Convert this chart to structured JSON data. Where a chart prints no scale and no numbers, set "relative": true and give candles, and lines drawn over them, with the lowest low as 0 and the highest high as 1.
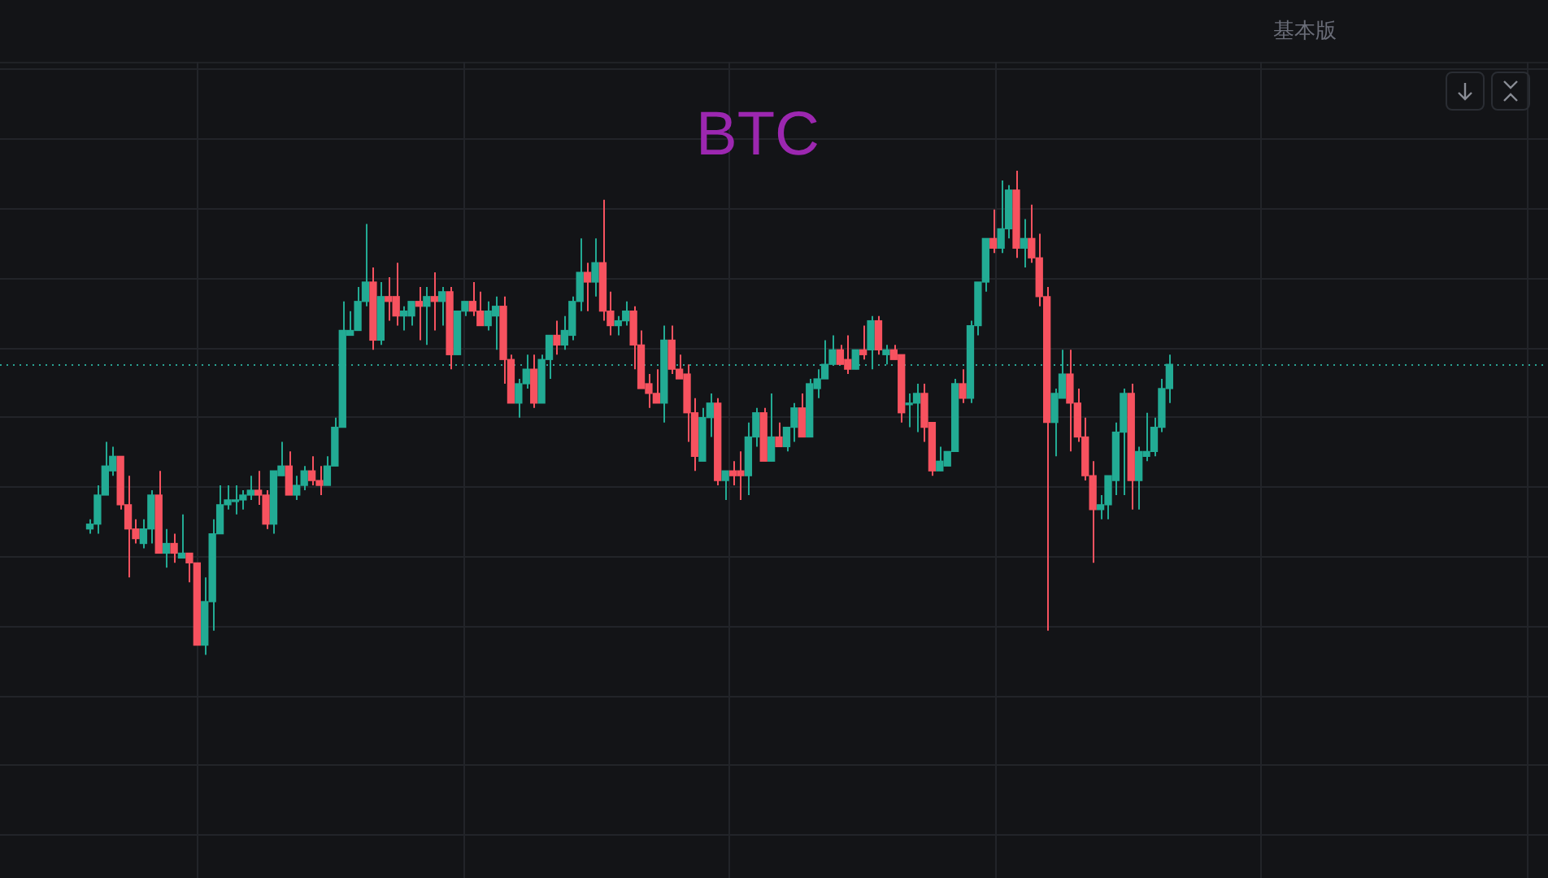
{
  "chart_data": {
    "type": "candlestick",
    "title": "BTC",
    "annotations": [
      "基本版"
    ],
    "relative": true,
    "grid": true,
    "categories": [
      null,
      null,
      null,
      null,
      null,
      null,
      null,
      null,
      null,
      null,
      null,
      null,
      null,
      null,
      null,
      null,
      null,
      null,
      null,
      null,
      null,
      null,
      null,
      null,
      null,
      null,
      null,
      null,
      null,
      null,
      null,
      null,
      null,
      null,
      null,
      null,
      null,
      null,
      null,
      null,
      null,
      null,
      null,
      null,
      null,
      null,
      null,
      null,
      null,
      null,
      null,
      null,
      null,
      null,
      null,
      null,
      null,
      null,
      null,
      null,
      null,
      null,
      null,
      null,
      null,
      null,
      null,
      null,
      null,
      null,
      null,
      null,
      null,
      null,
      null,
      null,
      null,
      null,
      null,
      null,
      null,
      null,
      null,
      null,
      null,
      null,
      null,
      null,
      null,
      null,
      null,
      null,
      null,
      null,
      null,
      null,
      null,
      null,
      null,
      null,
      null,
      null,
      null,
      null,
      null,
      null,
      null,
      null,
      null,
      null,
      null,
      null,
      null,
      null,
      null,
      null,
      null,
      null,
      null,
      null,
      null,
      null,
      null,
      null,
      null,
      null,
      null,
      null,
      null,
      null,
      null,
      null,
      null,
      null,
      null,
      null,
      null,
      null,
      null,
      null,
      null,
      null
    ],
    "ohlc": [
      [
        0.26,
        0.28,
        0.25,
        0.27
      ],
      [
        0.27,
        0.35,
        0.25,
        0.33
      ],
      [
        0.33,
        0.44,
        0.33,
        0.39
      ],
      [
        0.38,
        0.43,
        0.37,
        0.41
      ],
      [
        0.41,
        0.41,
        0.3,
        0.31
      ],
      [
        0.31,
        0.37,
        0.16,
        0.26
      ],
      [
        0.26,
        0.28,
        0.23,
        0.24
      ],
      [
        0.23,
        0.28,
        0.22,
        0.26
      ],
      [
        0.26,
        0.34,
        0.23,
        0.33
      ],
      [
        0.33,
        0.38,
        0.21,
        0.21
      ],
      [
        0.21,
        0.26,
        0.18,
        0.23
      ],
      [
        0.23,
        0.25,
        0.19,
        0.21
      ],
      [
        0.2,
        0.29,
        0.2,
        0.21
      ],
      [
        0.21,
        0.21,
        0.15,
        0.19
      ],
      [
        0.19,
        0.19,
        0.02,
        0.02
      ],
      [
        0.02,
        0.16,
        0,
        0.11
      ],
      [
        0.11,
        0.28,
        0.05,
        0.25
      ],
      [
        0.25,
        0.35,
        0.25,
        0.31
      ],
      [
        0.31,
        0.35,
        0.3,
        0.32
      ],
      [
        0.32,
        0.35,
        0.29,
        0.32
      ],
      [
        0.32,
        0.34,
        0.3,
        0.33
      ],
      [
        0.33,
        0.37,
        0.32,
        0.34
      ],
      [
        0.34,
        0.38,
        0.31,
        0.33
      ],
      [
        0.33,
        0.34,
        0.26,
        0.27
      ],
      [
        0.27,
        0.38,
        0.25,
        0.38
      ],
      [
        0.37,
        0.44,
        0.37,
        0.39
      ],
      [
        0.39,
        0.42,
        0.33,
        0.33
      ],
      [
        0.33,
        0.37,
        0.32,
        0.35
      ],
      [
        0.35,
        0.39,
        0.34,
        0.38
      ],
      [
        0.38,
        0.41,
        0.35,
        0.36
      ],
      [
        0.36,
        0.39,
        0.33,
        0.35
      ],
      [
        0.35,
        0.41,
        0.35,
        0.39
      ],
      [
        0.39,
        0.49,
        0.39,
        0.47
      ],
      [
        0.47,
        0.73,
        0.47,
        0.67
      ],
      [
        0.66,
        0.71,
        0.66,
        0.67
      ],
      [
        0.67,
        0.76,
        0.67,
        0.73
      ],
      [
        0.73,
        0.89,
        0.72,
        0.77
      ],
      [
        0.77,
        0.8,
        0.63,
        0.65
      ],
      [
        0.65,
        0.77,
        0.64,
        0.74
      ],
      [
        0.74,
        0.78,
        0.69,
        0.73
      ],
      [
        0.74,
        0.81,
        0.68,
        0.7
      ],
      [
        0.7,
        0.72,
        0.67,
        0.71
      ],
      [
        0.7,
        0.73,
        0.68,
        0.73
      ],
      [
        0.73,
        0.76,
        0.65,
        0.72
      ],
      [
        0.72,
        0.76,
        0.64,
        0.74
      ],
      [
        0.74,
        0.79,
        0.67,
        0.73
      ],
      [
        0.73,
        0.76,
        0.68,
        0.75
      ],
      [
        0.75,
        0.76,
        0.59,
        0.62
      ],
      [
        0.62,
        0.71,
        0.62,
        0.71
      ],
      [
        0.71,
        0.73,
        0.7,
        0.73
      ],
      [
        0.73,
        0.77,
        0.7,
        0.71
      ],
      [
        0.71,
        0.75,
        0.68,
        0.68
      ],
      [
        0.68,
        0.73,
        0.67,
        0.71
      ],
      [
        0.7,
        0.74,
        0.63,
        0.72
      ],
      [
        0.72,
        0.74,
        0.56,
        0.61
      ],
      [
        0.61,
        0.62,
        0.52,
        0.52
      ],
      [
        0.52,
        0.57,
        0.49,
        0.56
      ],
      [
        0.56,
        0.62,
        0.55,
        0.59
      ],
      [
        0.59,
        0.62,
        0.51,
        0.52
      ],
      [
        0.52,
        0.62,
        0.52,
        0.61
      ],
      [
        0.61,
        0.66,
        0.57,
        0.66
      ],
      [
        0.66,
        0.69,
        0.62,
        0.64
      ],
      [
        0.64,
        0.7,
        0.63,
        0.67
      ],
      [
        0.66,
        0.74,
        0.65,
        0.73
      ],
      [
        0.73,
        0.86,
        0.71,
        0.79
      ],
      [
        0.79,
        0.81,
        0.71,
        0.77
      ],
      [
        0.77,
        0.86,
        0.74,
        0.81
      ],
      [
        0.81,
        0.94,
        0.69,
        0.71
      ],
      [
        0.71,
        0.75,
        0.66,
        0.68
      ],
      [
        0.68,
        0.7,
        0.66,
        0.69
      ],
      [
        0.69,
        0.73,
        0.68,
        0.71
      ],
      [
        0.71,
        0.72,
        0.59,
        0.64
      ],
      [
        0.64,
        0.67,
        0.55,
        0.55
      ],
      [
        0.56,
        0.58,
        0.51,
        0.54
      ],
      [
        0.54,
        0.59,
        0.52,
        0.52
      ],
      [
        0.52,
        0.68,
        0.48,
        0.65
      ],
      [
        0.65,
        0.68,
        0.58,
        0.59
      ],
      [
        0.59,
        0.62,
        0.57,
        0.57
      ],
      [
        0.58,
        0.6,
        0.44,
        0.5
      ],
      [
        0.5,
        0.53,
        0.38,
        0.41
      ],
      [
        0.4,
        0.51,
        0.4,
        0.49
      ],
      [
        0.49,
        0.54,
        0.45,
        0.52
      ],
      [
        0.52,
        0.53,
        0.35,
        0.36
      ],
      [
        0.36,
        0.38,
        0.32,
        0.38
      ],
      [
        0.38,
        0.4,
        0.35,
        0.37
      ],
      [
        0.38,
        0.42,
        0.32,
        0.37
      ],
      [
        0.37,
        0.48,
        0.33,
        0.45
      ],
      [
        0.45,
        0.51,
        0.43,
        0.5
      ],
      [
        0.5,
        0.51,
        0.4,
        0.4
      ],
      [
        0.4,
        0.54,
        0.4,
        0.45
      ],
      [
        0.45,
        0.48,
        0.43,
        0.43
      ],
      [
        0.43,
        0.47,
        0.42,
        0.47
      ],
      [
        0.47,
        0.52,
        0.44,
        0.51
      ],
      [
        0.51,
        0.54,
        0.45,
        0.45
      ],
      [
        0.45,
        0.57,
        0.45,
        0.56
      ],
      [
        0.55,
        0.59,
        0.53,
        0.57
      ],
      [
        0.57,
        0.65,
        0.57,
        0.6
      ],
      [
        0.6,
        0.66,
        0.6,
        0.63
      ],
      [
        0.63,
        0.64,
        0.6,
        0.6
      ],
      [
        0.61,
        0.66,
        0.58,
        0.59
      ],
      [
        0.59,
        0.63,
        0.59,
        0.63
      ],
      [
        0.63,
        0.68,
        0.61,
        0.62
      ],
      [
        0.63,
        0.7,
        0.59,
        0.69
      ],
      [
        0.69,
        0.7,
        0.62,
        0.63
      ],
      [
        0.62,
        0.64,
        0.6,
        0.63
      ],
      [
        0.63,
        0.64,
        0.61,
        0.61
      ],
      [
        0.62,
        0.62,
        0.48,
        0.5
      ],
      [
        0.52,
        0.54,
        0.47,
        0.52
      ],
      [
        0.52,
        0.56,
        0.46,
        0.54
      ],
      [
        0.54,
        0.56,
        0.44,
        0.47
      ],
      [
        0.48,
        0.48,
        0.37,
        0.38
      ],
      [
        0.38,
        0.43,
        0.38,
        0.4
      ],
      [
        0.39,
        0.42,
        0.39,
        0.42
      ],
      [
        0.42,
        0.57,
        0.42,
        0.56
      ],
      [
        0.56,
        0.59,
        0.52,
        0.53
      ],
      [
        0.53,
        0.69,
        0.52,
        0.68
      ],
      [
        0.68,
        0.77,
        0.66,
        0.77
      ],
      [
        0.77,
        0.86,
        0.75,
        0.86
      ],
      [
        0.86,
        0.92,
        0.83,
        0.84
      ],
      [
        0.84,
        0.98,
        0.83,
        0.88
      ],
      [
        0.88,
        0.97,
        0.86,
        0.96
      ],
      [
        0.96,
        1,
        0.82,
        0.84
      ],
      [
        0.84,
        0.9,
        0.8,
        0.86
      ],
      [
        0.86,
        0.93,
        0.81,
        0.82
      ],
      [
        0.82,
        0.87,
        0.72,
        0.74
      ],
      [
        0.74,
        0.76,
        0.05,
        0.48
      ],
      [
        0.48,
        0.55,
        0.41,
        0.54
      ],
      [
        0.53,
        0.63,
        0.53,
        0.58
      ],
      [
        0.58,
        0.63,
        0.42,
        0.52
      ],
      [
        0.52,
        0.55,
        0.44,
        0.45
      ],
      [
        0.45,
        0.49,
        0.36,
        0.37
      ],
      [
        0.37,
        0.4,
        0.19,
        0.3
      ],
      [
        0.3,
        0.33,
        0.28,
        0.31
      ],
      [
        0.31,
        0.37,
        0.28,
        0.37
      ],
      [
        0.36,
        0.48,
        0.33,
        0.46
      ],
      [
        0.46,
        0.55,
        0.33,
        0.54
      ],
      [
        0.54,
        0.56,
        0.3,
        0.36
      ],
      [
        0.36,
        0.43,
        0.3,
        0.42
      ],
      [
        0.41,
        0.5,
        0.4,
        0.42
      ],
      [
        0.42,
        0.49,
        0.41,
        0.47
      ],
      [
        0.47,
        0.57,
        0.46,
        0.55
      ],
      [
        0.55,
        0.62,
        0.52,
        0.6
      ]
    ],
    "colors": [
      "#22ab94",
      "#22ab94",
      "#22ab94",
      "#22ab94",
      "#f7525f",
      "#f7525f",
      "#f7525f",
      "#22ab94",
      "#22ab94",
      "#f7525f",
      "#22ab94",
      "#f7525f",
      "#22ab94",
      "#f7525f",
      "#f7525f",
      "#22ab94",
      "#22ab94",
      "#22ab94",
      "#22ab94",
      "#22ab94",
      "#22ab94",
      "#22ab94",
      "#f7525f",
      "#f7525f",
      "#22ab94",
      "#22ab94",
      "#f7525f",
      "#22ab94",
      "#22ab94",
      "#f7525f",
      "#f7525f",
      "#22ab94",
      "#22ab94",
      "#22ab94",
      "#22ab94",
      "#22ab94",
      "#22ab94",
      "#f7525f",
      "#22ab94",
      "#f7525f",
      "#f7525f",
      "#22ab94",
      "#22ab94",
      "#f7525f",
      "#22ab94",
      "#f7525f",
      "#22ab94",
      "#f7525f",
      "#22ab94",
      "#22ab94",
      "#f7525f",
      "#f7525f",
      "#22ab94",
      "#22ab94",
      "#f7525f",
      "#f7525f",
      "#22ab94",
      "#22ab94",
      "#f7525f",
      "#22ab94",
      "#22ab94",
      "#f7525f",
      "#22ab94",
      "#22ab94",
      "#22ab94",
      "#f7525f",
      "#22ab94",
      "#f7525f",
      "#f7525f",
      "#22ab94",
      "#22ab94",
      "#f7525f",
      "#f7525f",
      "#f7525f",
      "#f7525f",
      "#22ab94",
      "#f7525f",
      "#f7525f",
      "#f7525f",
      "#f7525f",
      "#22ab94",
      "#22ab94",
      "#f7525f",
      "#22ab94",
      "#f7525f",
      "#f7525f",
      "#22ab94",
      "#22ab94",
      "#f7525f",
      "#22ab94",
      "#f7525f",
      "#22ab94",
      "#22ab94",
      "#f7525f",
      "#22ab94",
      "#22ab94",
      "#22ab94",
      "#22ab94",
      "#f7525f",
      "#f7525f",
      "#22ab94",
      "#f7525f",
      "#22ab94",
      "#f7525f",
      "#22ab94",
      "#f7525f",
      "#f7525f",
      "#22ab94",
      "#22ab94",
      "#f7525f",
      "#f7525f",
      "#22ab94",
      "#22ab94",
      "#22ab94",
      "#f7525f",
      "#22ab94",
      "#22ab94",
      "#22ab94",
      "#f7525f",
      "#22ab94",
      "#22ab94",
      "#f7525f",
      "#22ab94",
      "#f7525f",
      "#f7525f",
      "#f7525f",
      "#22ab94",
      "#22ab94",
      "#f7525f",
      "#f7525f",
      "#f7525f",
      "#f7525f",
      "#22ab94",
      "#22ab94",
      "#22ab94",
      "#22ab94",
      "#f7525f",
      "#22ab94",
      "#22ab94",
      "#22ab94",
      "#22ab94",
      "#22ab94"
    ],
    "ref_lines": [
      {
        "axis": "y",
        "value": 0.6,
        "color": "#2aa394",
        "line_style": "dotted"
      }
    ]
  }
}
